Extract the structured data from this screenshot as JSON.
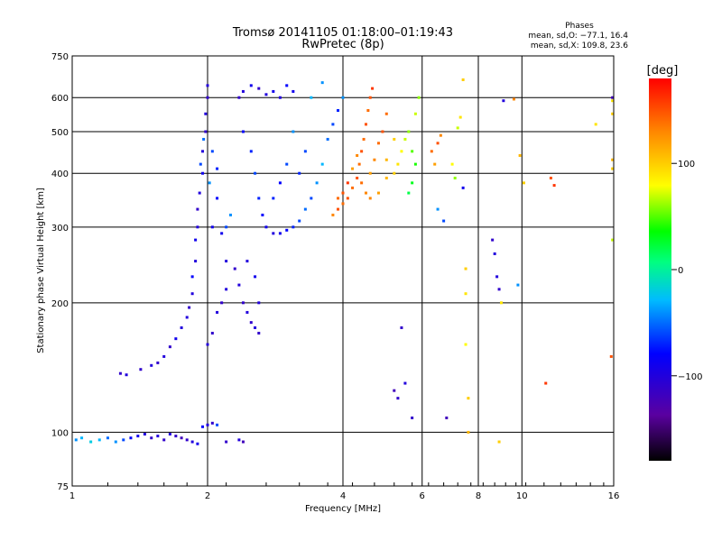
{
  "chart_data": {
    "type": "scatter",
    "title": "Tromsø 20141105 01:18:00–01:19:43",
    "subtitle": "RwPretec (8p)",
    "xlabel": "Frequency [MHz]",
    "ylabel": "Stationary phase Virtual Height [km]",
    "x_scale": "log",
    "y_scale": "log",
    "xlim": [
      1,
      16
    ],
    "ylim": [
      75,
      750
    ],
    "x_ticks": [
      "1",
      "2",
      "4",
      "6",
      "8",
      "10",
      "16"
    ],
    "y_ticks": [
      "75",
      "100",
      "200",
      "300",
      "400",
      "500",
      "600",
      "750"
    ],
    "x_tick_values": [
      1,
      2,
      4,
      6,
      8,
      10,
      16
    ],
    "y_tick_values": [
      75,
      100,
      200,
      300,
      400,
      500,
      600,
      750
    ],
    "grid": true,
    "stats": {
      "heading": "Phases",
      "line_o": "mean, sd,O: −77.1, 16.4",
      "line_x": "mean, sd,X: 109.8, 23.6"
    },
    "colorbar": {
      "label": "[deg]",
      "range": [
        -180,
        180
      ],
      "ticks": [
        "100",
        "0",
        "−100"
      ],
      "tick_values": [
        100,
        0,
        -100
      ]
    },
    "points": [
      [
        1.02,
        96,
        -40
      ],
      [
        1.05,
        97,
        -30
      ],
      [
        1.1,
        95,
        -20
      ],
      [
        1.15,
        96,
        -30
      ],
      [
        1.2,
        97,
        -50
      ],
      [
        1.25,
        95,
        -40
      ],
      [
        1.3,
        96,
        -60
      ],
      [
        1.35,
        97,
        -80
      ],
      [
        1.4,
        98,
        -90
      ],
      [
        1.45,
        99,
        -100
      ],
      [
        1.5,
        97,
        -110
      ],
      [
        1.55,
        98,
        -100
      ],
      [
        1.6,
        96,
        -110
      ],
      [
        1.65,
        99,
        -100
      ],
      [
        1.7,
        98,
        -110
      ],
      [
        1.75,
        97,
        -120
      ],
      [
        1.8,
        96,
        -110
      ],
      [
        1.85,
        95,
        -100
      ],
      [
        1.9,
        94,
        -90
      ],
      [
        1.95,
        103,
        -80
      ],
      [
        2.0,
        104,
        -100
      ],
      [
        2.05,
        105,
        -110
      ],
      [
        2.1,
        104,
        -60
      ],
      [
        2.2,
        95,
        -110
      ],
      [
        2.35,
        96,
        -100
      ],
      [
        2.4,
        95,
        -120
      ],
      [
        1.28,
        137,
        -110
      ],
      [
        1.32,
        136,
        -100
      ],
      [
        1.42,
        140,
        -110
      ],
      [
        1.5,
        143,
        -100
      ],
      [
        1.55,
        145,
        -110
      ],
      [
        1.6,
        150,
        -100
      ],
      [
        1.65,
        158,
        -110
      ],
      [
        1.7,
        165,
        -90
      ],
      [
        1.75,
        175,
        -100
      ],
      [
        1.8,
        185,
        -100
      ],
      [
        1.82,
        195,
        -110
      ],
      [
        1.85,
        210,
        -100
      ],
      [
        1.85,
        230,
        -80
      ],
      [
        1.88,
        250,
        -100
      ],
      [
        1.88,
        280,
        -90
      ],
      [
        1.9,
        300,
        -100
      ],
      [
        1.9,
        330,
        -110
      ],
      [
        1.92,
        360,
        -100
      ],
      [
        1.95,
        400,
        -90
      ],
      [
        1.95,
        450,
        -100
      ],
      [
        1.98,
        500,
        -110
      ],
      [
        1.98,
        550,
        -100
      ],
      [
        2.0,
        600,
        -110
      ],
      [
        2.0,
        640,
        -100
      ],
      [
        1.93,
        420,
        -60
      ],
      [
        1.96,
        480,
        -50
      ],
      [
        2.02,
        380,
        -40
      ],
      [
        2.05,
        450,
        -60
      ],
      [
        2.05,
        300,
        -90
      ],
      [
        2.1,
        350,
        -80
      ],
      [
        2.1,
        410,
        -70
      ],
      [
        2.15,
        290,
        -90
      ],
      [
        2.2,
        300,
        -60
      ],
      [
        2.25,
        320,
        -40
      ],
      [
        2.2,
        250,
        -100
      ],
      [
        2.3,
        240,
        -110
      ],
      [
        2.35,
        220,
        -100
      ],
      [
        2.4,
        200,
        -110
      ],
      [
        2.45,
        190,
        -100
      ],
      [
        2.5,
        180,
        -110
      ],
      [
        2.55,
        175,
        -100
      ],
      [
        2.6,
        170,
        -110
      ],
      [
        2.6,
        200,
        -100
      ],
      [
        2.55,
        230,
        -90
      ],
      [
        2.45,
        250,
        -100
      ],
      [
        2.0,
        160,
        -100
      ],
      [
        2.05,
        170,
        -110
      ],
      [
        2.1,
        190,
        -100
      ],
      [
        2.15,
        200,
        -110
      ],
      [
        2.2,
        215,
        -100
      ],
      [
        2.35,
        600,
        -110
      ],
      [
        2.4,
        620,
        -100
      ],
      [
        2.5,
        640,
        -90
      ],
      [
        2.6,
        630,
        -110
      ],
      [
        2.7,
        610,
        -100
      ],
      [
        2.8,
        620,
        -90
      ],
      [
        2.9,
        600,
        -100
      ],
      [
        3.0,
        640,
        -80
      ],
      [
        3.1,
        620,
        -90
      ],
      [
        2.4,
        500,
        -80
      ],
      [
        2.5,
        450,
        -70
      ],
      [
        2.55,
        400,
        -60
      ],
      [
        2.6,
        350,
        -70
      ],
      [
        2.65,
        320,
        -80
      ],
      [
        2.7,
        300,
        -90
      ],
      [
        2.8,
        290,
        -100
      ],
      [
        2.9,
        290,
        -90
      ],
      [
        3.0,
        295,
        -80
      ],
      [
        3.1,
        300,
        -70
      ],
      [
        3.2,
        310,
        -60
      ],
      [
        3.3,
        330,
        -50
      ],
      [
        3.4,
        350,
        -60
      ],
      [
        3.5,
        380,
        -40
      ],
      [
        3.6,
        420,
        -30
      ],
      [
        3.7,
        480,
        -50
      ],
      [
        3.8,
        520,
        -60
      ],
      [
        3.9,
        560,
        -70
      ],
      [
        4.0,
        600,
        -40
      ],
      [
        3.2,
        400,
        -70
      ],
      [
        3.3,
        450,
        -60
      ],
      [
        3.1,
        500,
        -40
      ],
      [
        3.0,
        420,
        -60
      ],
      [
        2.9,
        380,
        -80
      ],
      [
        2.8,
        350,
        -70
      ],
      [
        3.4,
        600,
        -30
      ],
      [
        3.6,
        650,
        -40
      ],
      [
        3.8,
        320,
        130
      ],
      [
        3.9,
        330,
        150
      ],
      [
        4.0,
        340,
        140
      ],
      [
        4.1,
        350,
        150
      ],
      [
        4.2,
        370,
        140
      ],
      [
        4.3,
        390,
        150
      ],
      [
        4.35,
        420,
        140
      ],
      [
        4.4,
        450,
        150
      ],
      [
        4.45,
        480,
        140
      ],
      [
        4.5,
        520,
        150
      ],
      [
        4.55,
        560,
        140
      ],
      [
        4.6,
        600,
        150
      ],
      [
        4.65,
        630,
        160
      ],
      [
        4.2,
        410,
        120
      ],
      [
        4.3,
        440,
        130
      ],
      [
        4.4,
        380,
        140
      ],
      [
        4.5,
        360,
        130
      ],
      [
        4.6,
        400,
        120
      ],
      [
        4.7,
        430,
        130
      ],
      [
        4.8,
        470,
        140
      ],
      [
        4.9,
        500,
        150
      ],
      [
        5.0,
        550,
        140
      ],
      [
        4.1,
        380,
        160
      ],
      [
        4.0,
        360,
        150
      ],
      [
        3.9,
        350,
        140
      ],
      [
        4.6,
        350,
        130
      ],
      [
        4.8,
        360,
        120
      ],
      [
        5.0,
        390,
        110
      ],
      [
        5.2,
        400,
        100
      ],
      [
        5.3,
        420,
        90
      ],
      [
        5.4,
        450,
        80
      ],
      [
        5.5,
        480,
        70
      ],
      [
        5.6,
        500,
        60
      ],
      [
        5.7,
        450,
        50
      ],
      [
        5.8,
        420,
        40
      ],
      [
        5.7,
        380,
        30
      ],
      [
        5.6,
        360,
        20
      ],
      [
        5.8,
        550,
        70
      ],
      [
        5.9,
        600,
        60
      ],
      [
        5.2,
        480,
        100
      ],
      [
        5.0,
        430,
        110
      ],
      [
        6.3,
        450,
        140
      ],
      [
        6.5,
        470,
        150
      ],
      [
        6.6,
        490,
        130
      ],
      [
        6.4,
        420,
        120
      ],
      [
        6.5,
        330,
        -40
      ],
      [
        6.7,
        310,
        -60
      ],
      [
        7.0,
        420,
        80
      ],
      [
        7.1,
        390,
        60
      ],
      [
        7.2,
        510,
        70
      ],
      [
        7.3,
        540,
        90
      ],
      [
        7.4,
        660,
        100
      ],
      [
        7.5,
        240,
        100
      ],
      [
        7.5,
        210,
        90
      ],
      [
        7.5,
        160,
        80
      ],
      [
        7.6,
        120,
        100
      ],
      [
        7.6,
        100,
        110
      ],
      [
        5.2,
        125,
        -120
      ],
      [
        5.3,
        120,
        -110
      ],
      [
        5.5,
        130,
        -100
      ],
      [
        5.4,
        175,
        -110
      ],
      [
        5.7,
        108,
        -110
      ],
      [
        6.8,
        108,
        -120
      ],
      [
        7.4,
        370,
        -90
      ],
      [
        8.6,
        280,
        -110
      ],
      [
        8.7,
        260,
        -100
      ],
      [
        8.8,
        230,
        -100
      ],
      [
        8.9,
        215,
        -110
      ],
      [
        9.0,
        200,
        90
      ],
      [
        8.9,
        95,
        100
      ],
      [
        9.1,
        590,
        -100
      ],
      [
        9.8,
        220,
        -40
      ],
      [
        9.9,
        440,
        110
      ],
      [
        9.6,
        595,
        130
      ],
      [
        10.1,
        380,
        100
      ],
      [
        11.3,
        130,
        160
      ],
      [
        11.6,
        390,
        150
      ],
      [
        11.8,
        375,
        160
      ],
      [
        14.6,
        520,
        90
      ],
      [
        15.8,
        150,
        150
      ],
      [
        15.9,
        410,
        100
      ],
      [
        15.9,
        430,
        110
      ],
      [
        15.9,
        280,
        70
      ],
      [
        15.9,
        550,
        100
      ],
      [
        15.9,
        590,
        90
      ],
      [
        15.9,
        600,
        -120
      ]
    ]
  }
}
